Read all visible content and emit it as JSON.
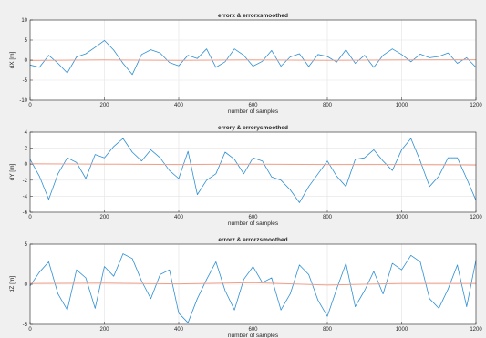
{
  "figure": {
    "background": "#f0f0f0"
  },
  "colors": {
    "raw": "#2e8fd4",
    "smoothed": "#f0a08a",
    "grid": "#e3e3e3",
    "axis": "#262626"
  },
  "chart_data": [
    {
      "type": "line",
      "title": "errorx & errorxsmoothed",
      "xlabel": "number of samples",
      "ylabel": "dX [m]",
      "xlim": [
        0,
        1200
      ],
      "ylim": [
        -10,
        10
      ],
      "xticks": [
        0,
        200,
        400,
        600,
        800,
        1000,
        1200
      ],
      "yticks": [
        -10,
        -5,
        0,
        5,
        10
      ],
      "grid": true,
      "series": [
        {
          "role": "raw",
          "color": "#2e8fd4",
          "x": [
            0,
            25,
            50,
            75,
            100,
            125,
            150,
            175,
            200,
            225,
            250,
            275,
            300,
            325,
            350,
            375,
            400,
            425,
            450,
            475,
            500,
            525,
            550,
            575,
            600,
            625,
            650,
            675,
            700,
            725,
            750,
            775,
            800,
            825,
            850,
            875,
            900,
            925,
            950,
            975,
            1000,
            1025,
            1050,
            1075,
            1100,
            1125,
            1150,
            1175,
            1200
          ],
          "y": [
            -1.2,
            -1.8,
            1.2,
            -0.8,
            -3.2,
            0.8,
            1.6,
            3.2,
            4.9,
            2.5,
            -0.8,
            -3.6,
            1.4,
            2.6,
            1.8,
            -0.6,
            -1.4,
            1.2,
            0.4,
            2.8,
            -1.8,
            -0.4,
            2.8,
            1.2,
            -1.5,
            -0.3,
            2.4,
            -1.5,
            0.8,
            1.6,
            -1.6,
            1.4,
            0.9,
            -0.5,
            2.6,
            -0.8,
            1.2,
            -1.8,
            1.2,
            2.8,
            1.4,
            -0.4,
            1.5,
            0.6,
            0.9,
            1.8,
            -0.8,
            0.6,
            -1.8
          ]
        },
        {
          "role": "smoothed",
          "color": "#f0a08a",
          "x": [
            0,
            200,
            400,
            600,
            800,
            1000,
            1200
          ],
          "y": [
            -0.1,
            0.05,
            -0.05,
            0.05,
            -0.05,
            0.05,
            0.1
          ]
        }
      ]
    },
    {
      "type": "line",
      "title": "errory & errorysmoothed",
      "xlabel": "number of samples",
      "ylabel": "dY [m]",
      "xlim": [
        0,
        1200
      ],
      "ylim": [
        -6,
        4
      ],
      "xticks": [
        0,
        200,
        400,
        600,
        800,
        1000,
        1200
      ],
      "yticks": [
        -6,
        -4,
        -2,
        0,
        2,
        4
      ],
      "grid": true,
      "series": [
        {
          "role": "raw",
          "color": "#2e8fd4",
          "x": [
            0,
            25,
            50,
            75,
            100,
            125,
            150,
            175,
            200,
            225,
            250,
            275,
            300,
            325,
            350,
            375,
            400,
            425,
            450,
            475,
            500,
            525,
            550,
            575,
            600,
            625,
            650,
            675,
            700,
            725,
            750,
            775,
            800,
            825,
            850,
            875,
            900,
            925,
            950,
            975,
            1000,
            1025,
            1050,
            1075,
            1100,
            1125,
            1150,
            1175,
            1200
          ],
          "y": [
            0.6,
            -1.5,
            -4.4,
            -1.2,
            0.8,
            0.2,
            -1.8,
            1.2,
            0.8,
            2.2,
            3.2,
            1.5,
            0.4,
            1.8,
            0.8,
            -0.8,
            -1.8,
            1.6,
            -3.8,
            -2.0,
            -1.2,
            1.5,
            0.6,
            -1.2,
            0.8,
            0.4,
            -1.6,
            -2.0,
            -3.2,
            -4.8,
            -2.8,
            -1.2,
            0.4,
            -1.5,
            -2.8,
            0.6,
            0.8,
            1.8,
            0.4,
            -0.8,
            1.8,
            3.2,
            0.4,
            -2.8,
            -1.5,
            0.8,
            0.8,
            -1.8,
            -4.5
          ]
        },
        {
          "role": "smoothed",
          "color": "#f0a08a",
          "x": [
            0,
            200,
            400,
            600,
            800,
            1000,
            1200
          ],
          "y": [
            0.05,
            0.0,
            -0.05,
            0.0,
            -0.05,
            -0.05,
            -0.1
          ]
        }
      ]
    },
    {
      "type": "line",
      "title": "errorz & errorzsmoothed",
      "xlabel": "number of samples",
      "ylabel": "dZ [m]",
      "xlim": [
        0,
        1200
      ],
      "ylim": [
        -5,
        5
      ],
      "xticks": [
        0,
        200,
        400,
        600,
        800,
        1000,
        1200
      ],
      "yticks": [
        -5,
        0,
        5
      ],
      "grid": true,
      "series": [
        {
          "role": "raw",
          "color": "#2e8fd4",
          "x": [
            0,
            25,
            50,
            75,
            100,
            125,
            150,
            175,
            200,
            225,
            250,
            275,
            300,
            325,
            350,
            375,
            400,
            425,
            450,
            475,
            500,
            525,
            550,
            575,
            600,
            625,
            650,
            675,
            700,
            725,
            750,
            775,
            800,
            825,
            850,
            875,
            900,
            925,
            950,
            975,
            1000,
            1025,
            1050,
            1075,
            1100,
            1125,
            1150,
            1175,
            1200
          ],
          "y": [
            -0.2,
            1.5,
            2.8,
            -1.2,
            -3.2,
            1.8,
            0.8,
            -3.0,
            2.2,
            1.0,
            3.8,
            3.2,
            0.4,
            -1.8,
            1.2,
            1.8,
            -3.6,
            -4.8,
            -1.8,
            0.6,
            2.8,
            -0.8,
            -3.2,
            0.6,
            2.2,
            0.2,
            0.8,
            -3.2,
            -1.2,
            2.4,
            1.2,
            -2.0,
            -4.0,
            -0.6,
            2.6,
            -2.8,
            -0.8,
            1.6,
            -1.2,
            2.6,
            1.8,
            3.6,
            2.8,
            -1.8,
            -3.0,
            -0.6,
            2.4,
            -2.8,
            3.0
          ]
        },
        {
          "role": "smoothed",
          "color": "#f0a08a",
          "x": [
            0,
            200,
            400,
            600,
            800,
            1000,
            1200
          ],
          "y": [
            0.1,
            0.15,
            0.05,
            0.2,
            -0.1,
            0.1,
            0.1
          ]
        }
      ]
    }
  ]
}
